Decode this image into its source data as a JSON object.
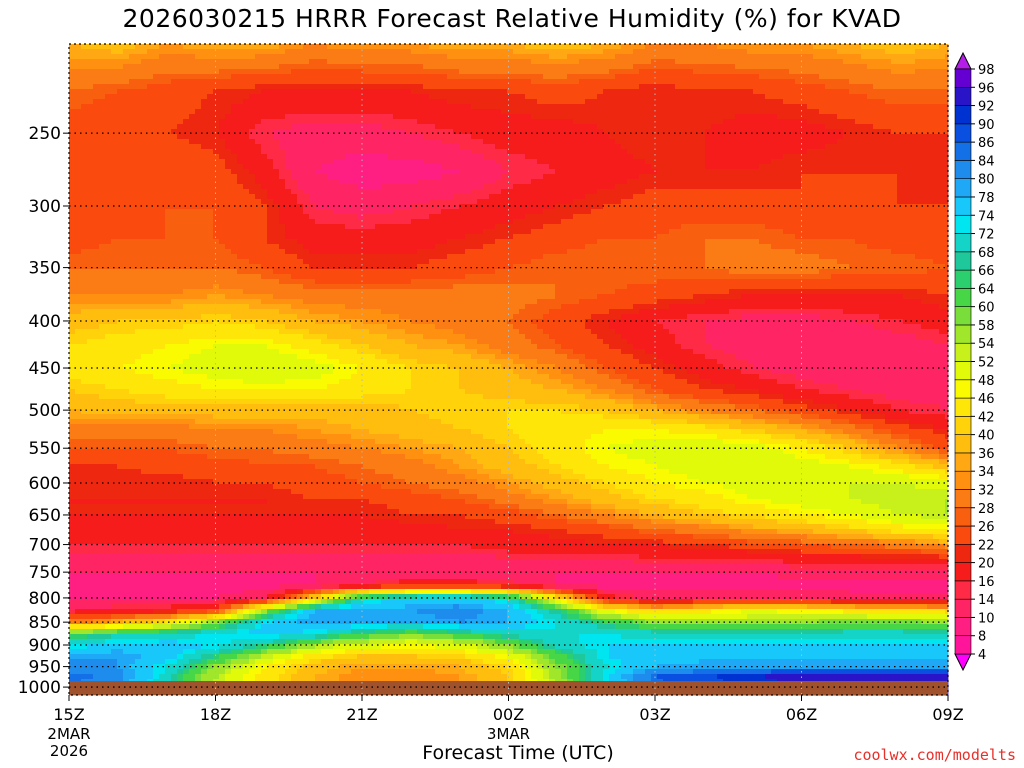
{
  "title": "2026030215 HRRR Forecast Relative Humidity (%) for KVAD",
  "credit": "coolwx.com/modelts",
  "chart_data": {
    "type": "heatmap",
    "title": "2026030215 HRRR Forecast Relative Humidity (%) for KVAD",
    "xlabel": "Forecast Time (UTC)",
    "ylabel": "",
    "x_ticks": [
      {
        "hour": 0,
        "label": "15Z",
        "sub": [
          "2MAR",
          "2026"
        ]
      },
      {
        "hour": 3,
        "label": "18Z",
        "sub": []
      },
      {
        "hour": 6,
        "label": "21Z",
        "sub": []
      },
      {
        "hour": 9,
        "label": "00Z",
        "sub": [
          "3MAR"
        ]
      },
      {
        "hour": 12,
        "label": "03Z",
        "sub": []
      },
      {
        "hour": 15,
        "label": "06Z",
        "sub": []
      },
      {
        "hour": 18,
        "label": "09Z",
        "sub": []
      }
    ],
    "y_ticks": [
      250,
      300,
      350,
      400,
      450,
      500,
      550,
      600,
      650,
      700,
      750,
      800,
      850,
      900,
      950,
      1000
    ],
    "y_range": [
      200,
      1020
    ],
    "x_range": [
      0,
      18
    ],
    "y_scale": "log-pressure",
    "grid": true,
    "surface_pressure": 1020,
    "surface_color": "#a0522d",
    "colorbar": {
      "labels": [
        4,
        8,
        10,
        14,
        16,
        20,
        22,
        26,
        28,
        32,
        34,
        36,
        40,
        42,
        46,
        48,
        52,
        54,
        58,
        60,
        64,
        66,
        68,
        72,
        74,
        78,
        80,
        84,
        86,
        90,
        92,
        96,
        98
      ],
      "colors": [
        "#ff00ff",
        "#ff149a",
        "#ff1e82",
        "#ff2564",
        "#ff2a46",
        "#f71c1c",
        "#ee2810",
        "#fb4a0e",
        "#f86010",
        "#fb7b14",
        "#ff9010",
        "#ffa814",
        "#ffbe0e",
        "#ffd20a",
        "#fde608",
        "#fafa00",
        "#e0fa0a",
        "#c8f01a",
        "#a0e62a",
        "#7ade3a",
        "#46d646",
        "#2ccf6e",
        "#1ec89a",
        "#14d4c8",
        "#00e6f0",
        "#18c8fa",
        "#1ea8f5",
        "#1e8ced",
        "#1470e6",
        "#0a50e0",
        "#0032d2",
        "#2a14c8",
        "#6400d2",
        "#8c0ae0",
        "#b41ee8"
      ]
    },
    "rh_x_hours": [
      0,
      1,
      2,
      3,
      4,
      5,
      6,
      7,
      8,
      9,
      10,
      11,
      12,
      13,
      14,
      15,
      16,
      17,
      18
    ],
    "rh_levels_hpa": [
      200,
      225,
      250,
      275,
      300,
      325,
      350,
      375,
      400,
      425,
      450,
      475,
      500,
      525,
      550,
      575,
      600,
      625,
      650,
      675,
      700,
      725,
      750,
      775,
      800,
      825,
      850,
      875,
      900,
      925,
      950,
      975,
      1000,
      1020
    ],
    "rh_values": [
      [
        36,
        38,
        34,
        36,
        36,
        32,
        34,
        34,
        36,
        36,
        38,
        36,
        32,
        32,
        34,
        34,
        36,
        38,
        36
      ],
      [
        28,
        26,
        24,
        22,
        20,
        20,
        20,
        20,
        22,
        22,
        24,
        22,
        20,
        22,
        22,
        24,
        26,
        28,
        28
      ],
      [
        24,
        22,
        22,
        20,
        14,
        12,
        12,
        14,
        16,
        18,
        18,
        20,
        22,
        20,
        18,
        18,
        20,
        22,
        22
      ],
      [
        24,
        24,
        26,
        24,
        18,
        10,
        8,
        8,
        10,
        14,
        16,
        18,
        20,
        20,
        20,
        22,
        22,
        22,
        20
      ],
      [
        22,
        24,
        26,
        26,
        22,
        14,
        12,
        14,
        16,
        18,
        20,
        22,
        24,
        24,
        24,
        22,
        22,
        22,
        22
      ],
      [
        24,
        26,
        26,
        26,
        22,
        18,
        18,
        18,
        20,
        22,
        24,
        26,
        26,
        28,
        28,
        26,
        26,
        24,
        24
      ],
      [
        28,
        28,
        28,
        28,
        26,
        22,
        22,
        22,
        24,
        26,
        28,
        28,
        28,
        28,
        30,
        30,
        28,
        28,
        26
      ],
      [
        32,
        32,
        32,
        34,
        32,
        30,
        30,
        30,
        30,
        30,
        28,
        26,
        24,
        22,
        20,
        20,
        20,
        20,
        22
      ],
      [
        38,
        40,
        40,
        42,
        40,
        36,
        34,
        32,
        30,
        28,
        24,
        20,
        16,
        14,
        12,
        12,
        14,
        16,
        18
      ],
      [
        42,
        44,
        46,
        48,
        48,
        44,
        40,
        36,
        34,
        30,
        26,
        22,
        18,
        14,
        12,
        10,
        10,
        12,
        14
      ],
      [
        44,
        46,
        48,
        50,
        52,
        50,
        46,
        42,
        40,
        36,
        32,
        26,
        22,
        18,
        14,
        12,
        10,
        10,
        12
      ],
      [
        40,
        42,
        44,
        46,
        46,
        46,
        44,
        42,
        40,
        38,
        36,
        32,
        26,
        22,
        20,
        16,
        14,
        12,
        12
      ],
      [
        36,
        38,
        38,
        38,
        38,
        38,
        38,
        40,
        42,
        42,
        42,
        40,
        36,
        32,
        28,
        24,
        20,
        16,
        14
      ],
      [
        30,
        30,
        30,
        32,
        32,
        34,
        36,
        38,
        40,
        42,
        44,
        46,
        46,
        44,
        40,
        36,
        30,
        24,
        20
      ],
      [
        26,
        26,
        26,
        28,
        28,
        30,
        32,
        34,
        36,
        40,
        44,
        48,
        50,
        52,
        50,
        46,
        40,
        32,
        24
      ],
      [
        22,
        22,
        24,
        24,
        26,
        26,
        28,
        30,
        34,
        38,
        42,
        46,
        48,
        50,
        50,
        50,
        48,
        44,
        38
      ],
      [
        20,
        20,
        20,
        22,
        22,
        24,
        26,
        28,
        30,
        34,
        38,
        42,
        46,
        48,
        50,
        50,
        52,
        52,
        50
      ],
      [
        20,
        20,
        20,
        20,
        20,
        22,
        22,
        24,
        26,
        30,
        34,
        38,
        42,
        44,
        48,
        50,
        52,
        54,
        54
      ],
      [
        20,
        20,
        20,
        20,
        20,
        20,
        20,
        22,
        22,
        24,
        28,
        32,
        36,
        40,
        42,
        46,
        48,
        52,
        54
      ],
      [
        18,
        18,
        18,
        18,
        18,
        18,
        18,
        18,
        20,
        20,
        22,
        24,
        28,
        30,
        34,
        36,
        40,
        44,
        46
      ],
      [
        16,
        16,
        16,
        16,
        16,
        16,
        16,
        16,
        16,
        18,
        18,
        20,
        20,
        22,
        24,
        26,
        28,
        30,
        34
      ],
      [
        12,
        12,
        12,
        12,
        12,
        12,
        12,
        12,
        12,
        14,
        14,
        14,
        16,
        16,
        16,
        18,
        18,
        20,
        20
      ],
      [
        10,
        10,
        10,
        10,
        10,
        10,
        10,
        10,
        10,
        10,
        10,
        10,
        10,
        10,
        10,
        12,
        12,
        12,
        12
      ],
      [
        8,
        8,
        8,
        8,
        8,
        10,
        14,
        20,
        20,
        16,
        10,
        8,
        8,
        8,
        8,
        8,
        8,
        8,
        8
      ],
      [
        10,
        10,
        10,
        10,
        14,
        40,
        70,
        74,
        76,
        70,
        44,
        18,
        12,
        14,
        14,
        14,
        12,
        12,
        12
      ],
      [
        14,
        16,
        18,
        24,
        56,
        78,
        80,
        80,
        82,
        78,
        66,
        48,
        40,
        44,
        48,
        46,
        44,
        42,
        40
      ],
      [
        30,
        36,
        44,
        58,
        74,
        80,
        78,
        78,
        80,
        78,
        72,
        64,
        58,
        56,
        56,
        58,
        60,
        60,
        58
      ],
      [
        62,
        66,
        70,
        72,
        76,
        72,
        64,
        60,
        64,
        70,
        72,
        72,
        70,
        70,
        70,
        70,
        70,
        70,
        70
      ],
      [
        72,
        76,
        76,
        74,
        66,
        56,
        50,
        48,
        50,
        58,
        70,
        74,
        74,
        74,
        74,
        74,
        74,
        74,
        74
      ],
      [
        78,
        80,
        76,
        66,
        54,
        44,
        40,
        40,
        42,
        48,
        62,
        74,
        76,
        76,
        76,
        76,
        76,
        76,
        76
      ],
      [
        82,
        80,
        72,
        58,
        46,
        38,
        34,
        34,
        36,
        42,
        58,
        72,
        78,
        80,
        80,
        80,
        80,
        80,
        80
      ],
      [
        86,
        82,
        70,
        54,
        44,
        36,
        32,
        32,
        34,
        40,
        56,
        74,
        86,
        90,
        92,
        94,
        96,
        96,
        96
      ],
      [
        84,
        80,
        68,
        54,
        44,
        36,
        32,
        32,
        34,
        40,
        54,
        72,
        84,
        88,
        90,
        92,
        94,
        94,
        94
      ],
      [
        82,
        78,
        66,
        52,
        42,
        34,
        30,
        30,
        32,
        38,
        52,
        70,
        82,
        86,
        88,
        90,
        92,
        92,
        92
      ]
    ]
  },
  "x_axis_label": "Forecast Time (UTC)"
}
